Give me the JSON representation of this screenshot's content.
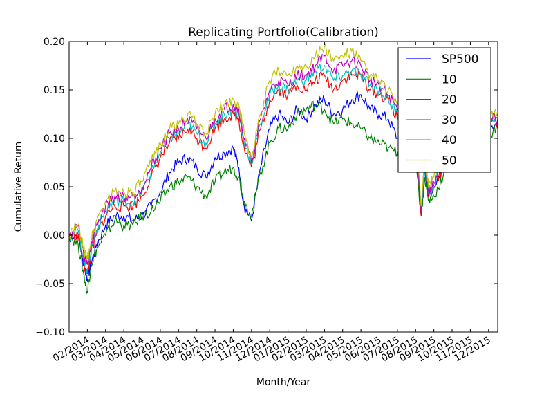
{
  "chart_data": {
    "type": "line",
    "title": "Replicating Portfolio(Calibration)",
    "xlabel": "Month/Year",
    "ylabel": "Cumulative Return",
    "ylim": [
      -0.1,
      0.2
    ],
    "yticks": [
      "0.20",
      "0.15",
      "0.10",
      "0.05",
      "0.00",
      "−0.05",
      "−0.10"
    ],
    "ytick_values": [
      0.2,
      0.15,
      0.1,
      0.05,
      0.0,
      -0.05,
      -0.1
    ],
    "xticks": [
      "02/2014",
      "03/2014",
      "04/2014",
      "05/2014",
      "06/2014",
      "07/2014",
      "08/2014",
      "09/2014",
      "10/2014",
      "11/2014",
      "12/2014",
      "01/2015",
      "02/2015",
      "03/2015",
      "04/2015",
      "05/2015",
      "06/2015",
      "07/2015",
      "08/2015",
      "09/2015",
      "10/2015",
      "11/2015",
      "12/2015"
    ],
    "xlim_months": [
      -0.0,
      23.5
    ],
    "legend_position": "top-right",
    "grid": false,
    "series": [
      {
        "name": "SP500",
        "color": "#0000ff",
        "x": [
          0.0,
          0.5,
          0.8,
          1.0,
          1.2,
          1.5,
          2.0,
          2.5,
          3.0,
          3.5,
          4.0,
          4.5,
          5.0,
          5.5,
          6.0,
          6.5,
          7.0,
          7.5,
          8.0,
          8.5,
          9.0,
          9.3,
          9.6,
          10.0,
          10.5,
          11.0,
          11.5,
          12.0,
          12.5,
          13.0,
          13.5,
          14.0,
          14.5,
          15.0,
          15.5,
          16.0,
          16.5,
          17.0,
          17.5,
          18.0,
          18.5,
          19.0,
          19.3,
          19.5,
          19.7,
          20.0,
          20.5,
          21.0,
          21.5,
          22.0,
          22.5,
          23.0,
          23.5
        ],
        "values": [
          0.0,
          0.0,
          -0.03,
          -0.045,
          -0.03,
          -0.01,
          0.01,
          0.02,
          0.02,
          0.015,
          0.02,
          0.03,
          0.045,
          0.065,
          0.075,
          0.08,
          0.07,
          0.06,
          0.08,
          0.085,
          0.09,
          0.07,
          0.03,
          0.015,
          0.07,
          0.11,
          0.125,
          0.115,
          0.13,
          0.12,
          0.135,
          0.14,
          0.125,
          0.13,
          0.14,
          0.145,
          0.13,
          0.125,
          0.12,
          0.1,
          0.1,
          0.095,
          0.02,
          0.07,
          0.04,
          0.05,
          0.07,
          0.09,
          0.09,
          0.1,
          0.1,
          0.115,
          0.115
        ]
      },
      {
        "name": "10",
        "color": "#008000",
        "x": [
          0.0,
          0.5,
          0.8,
          1.0,
          1.2,
          1.5,
          2.0,
          2.5,
          3.0,
          3.5,
          4.0,
          4.5,
          5.0,
          5.5,
          6.0,
          6.5,
          7.0,
          7.5,
          8.0,
          8.5,
          9.0,
          9.3,
          9.6,
          10.0,
          10.5,
          11.0,
          11.5,
          12.0,
          12.5,
          13.0,
          13.5,
          14.0,
          14.5,
          15.0,
          15.5,
          16.0,
          16.5,
          17.0,
          17.5,
          18.0,
          18.5,
          19.0,
          19.3,
          19.5,
          19.7,
          20.0,
          20.5,
          21.0,
          21.5,
          22.0,
          22.5,
          23.0,
          23.5
        ],
        "values": [
          0.0,
          -0.01,
          -0.04,
          -0.06,
          -0.03,
          -0.015,
          0.0,
          0.015,
          0.01,
          0.01,
          0.02,
          0.025,
          0.035,
          0.05,
          0.055,
          0.06,
          0.05,
          0.04,
          0.055,
          0.065,
          0.07,
          0.06,
          0.035,
          0.02,
          0.065,
          0.095,
          0.11,
          0.11,
          0.125,
          0.13,
          0.135,
          0.13,
          0.115,
          0.12,
          0.115,
          0.11,
          0.1,
          0.095,
          0.09,
          0.085,
          0.09,
          0.085,
          0.02,
          0.06,
          0.035,
          0.04,
          0.06,
          0.08,
          0.08,
          0.09,
          0.095,
          0.105,
          0.11
        ]
      },
      {
        "name": "20",
        "color": "#ff0000",
        "x": [
          0.0,
          0.5,
          0.8,
          1.0,
          1.2,
          1.5,
          2.0,
          2.5,
          3.0,
          3.5,
          4.0,
          4.5,
          5.0,
          5.5,
          6.0,
          6.5,
          7.0,
          7.5,
          8.0,
          8.5,
          9.0,
          9.3,
          9.6,
          10.0,
          10.5,
          11.0,
          11.5,
          12.0,
          12.5,
          13.0,
          13.5,
          14.0,
          14.5,
          15.0,
          15.5,
          16.0,
          16.5,
          17.0,
          17.5,
          18.0,
          18.5,
          19.0,
          19.3,
          19.5,
          19.7,
          20.0,
          20.5,
          21.0,
          21.5,
          22.0,
          22.5,
          23.0,
          23.5
        ],
        "values": [
          0.0,
          0.0,
          -0.03,
          -0.04,
          -0.02,
          0.0,
          0.02,
          0.03,
          0.03,
          0.03,
          0.04,
          0.06,
          0.08,
          0.095,
          0.1,
          0.11,
          0.1,
          0.09,
          0.11,
          0.12,
          0.125,
          0.12,
          0.09,
          0.07,
          0.11,
          0.14,
          0.15,
          0.145,
          0.155,
          0.15,
          0.16,
          0.165,
          0.15,
          0.16,
          0.165,
          0.165,
          0.15,
          0.145,
          0.14,
          0.12,
          0.115,
          0.11,
          0.02,
          0.07,
          0.04,
          0.05,
          0.07,
          0.095,
          0.095,
          0.105,
          0.105,
          0.12,
          0.115
        ]
      },
      {
        "name": "30",
        "color": "#00bfbf",
        "x": [
          0.0,
          0.5,
          0.8,
          1.0,
          1.2,
          1.5,
          2.0,
          2.5,
          3.0,
          3.5,
          4.0,
          4.5,
          5.0,
          5.5,
          6.0,
          6.5,
          7.0,
          7.5,
          8.0,
          8.5,
          9.0,
          9.3,
          9.6,
          10.0,
          10.5,
          11.0,
          11.5,
          12.0,
          12.5,
          13.0,
          13.5,
          14.0,
          14.5,
          15.0,
          15.5,
          16.0,
          16.5,
          17.0,
          17.5,
          18.0,
          18.5,
          19.0,
          19.3,
          19.5,
          19.7,
          20.0,
          20.5,
          21.0,
          21.5,
          22.0,
          22.5,
          23.0,
          23.5
        ],
        "values": [
          0.0,
          0.005,
          -0.025,
          -0.035,
          -0.015,
          0.005,
          0.025,
          0.035,
          0.035,
          0.035,
          0.045,
          0.065,
          0.085,
          0.1,
          0.105,
          0.115,
          0.105,
          0.095,
          0.115,
          0.125,
          0.13,
          0.125,
          0.095,
          0.075,
          0.115,
          0.145,
          0.155,
          0.15,
          0.16,
          0.16,
          0.17,
          0.175,
          0.16,
          0.165,
          0.17,
          0.165,
          0.155,
          0.15,
          0.14,
          0.125,
          0.115,
          0.11,
          0.025,
          0.07,
          0.045,
          0.05,
          0.075,
          0.1,
          0.1,
          0.11,
          0.11,
          0.12,
          0.12
        ]
      },
      {
        "name": "40",
        "color": "#bf00bf",
        "x": [
          0.0,
          0.5,
          0.8,
          1.0,
          1.2,
          1.5,
          2.0,
          2.5,
          3.0,
          3.5,
          4.0,
          4.5,
          5.0,
          5.5,
          6.0,
          6.5,
          7.0,
          7.5,
          8.0,
          8.5,
          9.0,
          9.3,
          9.6,
          10.0,
          10.5,
          11.0,
          11.5,
          12.0,
          12.5,
          13.0,
          13.5,
          14.0,
          14.5,
          15.0,
          15.5,
          16.0,
          16.5,
          17.0,
          17.5,
          18.0,
          18.5,
          19.0,
          19.3,
          19.5,
          19.7,
          20.0,
          20.5,
          21.0,
          21.5,
          22.0,
          22.5,
          23.0,
          23.5
        ],
        "values": [
          0.0,
          0.01,
          -0.02,
          -0.03,
          -0.01,
          0.01,
          0.03,
          0.04,
          0.04,
          0.04,
          0.05,
          0.07,
          0.09,
          0.105,
          0.11,
          0.12,
          0.11,
          0.1,
          0.12,
          0.13,
          0.135,
          0.13,
          0.1,
          0.075,
          0.12,
          0.15,
          0.16,
          0.155,
          0.165,
          0.165,
          0.175,
          0.185,
          0.17,
          0.175,
          0.18,
          0.175,
          0.16,
          0.155,
          0.145,
          0.13,
          0.12,
          0.115,
          0.025,
          0.075,
          0.045,
          0.055,
          0.08,
          0.1,
          0.105,
          0.115,
          0.115,
          0.125,
          0.12
        ]
      },
      {
        "name": "50",
        "color": "#bfbf00",
        "x": [
          0.0,
          0.5,
          0.8,
          1.0,
          1.2,
          1.5,
          2.0,
          2.5,
          3.0,
          3.5,
          4.0,
          4.5,
          5.0,
          5.5,
          6.0,
          6.5,
          7.0,
          7.5,
          8.0,
          8.5,
          9.0,
          9.3,
          9.6,
          10.0,
          10.5,
          11.0,
          11.5,
          12.0,
          12.5,
          13.0,
          13.5,
          14.0,
          14.5,
          15.0,
          15.5,
          16.0,
          16.5,
          17.0,
          17.5,
          18.0,
          18.5,
          19.0,
          19.3,
          19.5,
          19.7,
          20.0,
          20.5,
          21.0,
          21.5,
          22.0,
          22.5,
          23.0,
          23.5
        ],
        "values": [
          0.0,
          0.01,
          -0.015,
          -0.025,
          -0.005,
          0.015,
          0.035,
          0.045,
          0.045,
          0.045,
          0.055,
          0.075,
          0.095,
          0.11,
          0.115,
          0.125,
          0.115,
          0.105,
          0.125,
          0.135,
          0.14,
          0.135,
          0.105,
          0.08,
          0.125,
          0.16,
          0.17,
          0.165,
          0.175,
          0.175,
          0.185,
          0.195,
          0.18,
          0.185,
          0.19,
          0.18,
          0.165,
          0.16,
          0.15,
          0.135,
          0.125,
          0.12,
          0.03,
          0.08,
          0.05,
          0.06,
          0.085,
          0.105,
          0.11,
          0.12,
          0.12,
          0.125,
          0.125
        ]
      }
    ]
  }
}
